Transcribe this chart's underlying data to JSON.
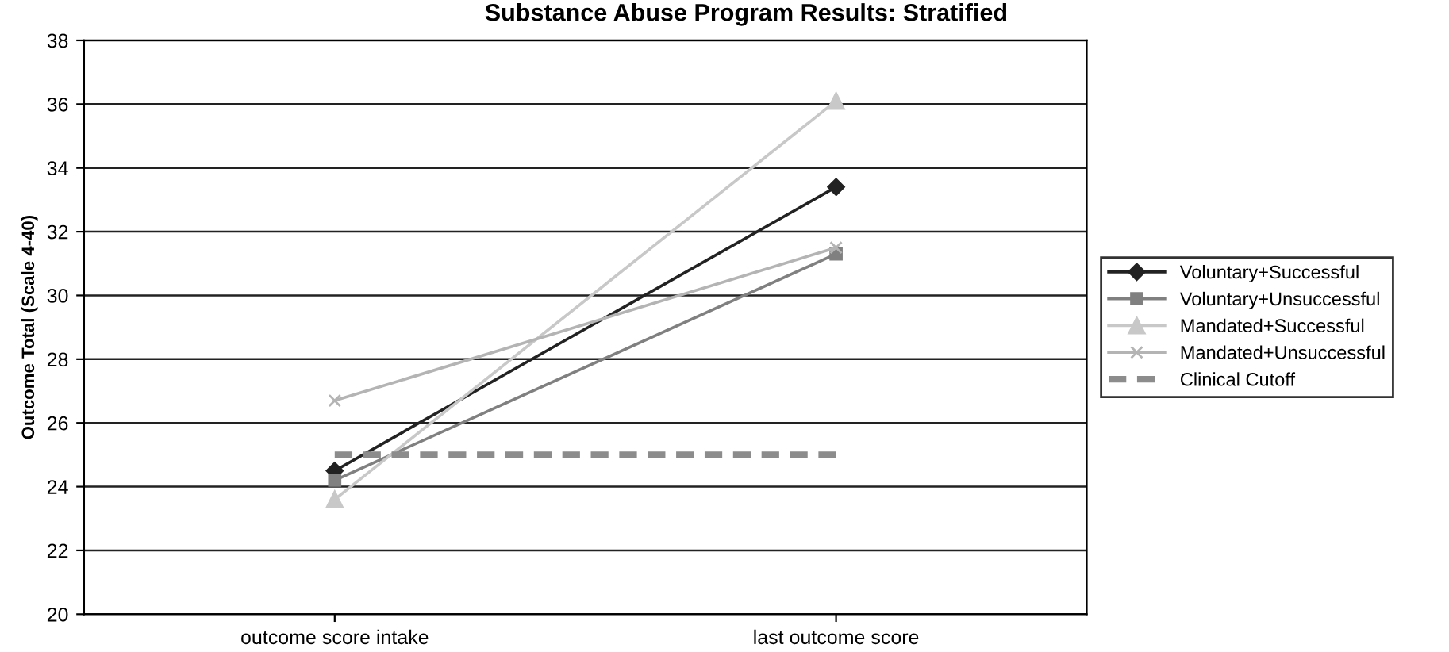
{
  "chart_data": {
    "type": "line",
    "title": "Substance Abuse Program Results: Stratified",
    "ylabel": "Outcome Total (Scale 4-40)",
    "categories": [
      "outcome score intake",
      "last outcome score"
    ],
    "series": [
      {
        "name": "Voluntary+Successful",
        "color": "#222222",
        "marker": "diamond",
        "values": [
          24.5,
          33.4
        ]
      },
      {
        "name": "Voluntary+Unsuccessful",
        "color": "#808080",
        "marker": "square",
        "values": [
          24.2,
          31.3
        ]
      },
      {
        "name": "Mandated+Successful",
        "color": "#c8c8c8",
        "marker": "triangle",
        "values": [
          23.6,
          36.1
        ]
      },
      {
        "name": "Mandated+Unsuccessful",
        "color": "#b4b4b4",
        "marker": "cross",
        "values": [
          26.7,
          31.5
        ]
      },
      {
        "name": "Clinical Cutoff",
        "color": "#8c8c8c",
        "marker": "none",
        "line_style": "dashed",
        "values": [
          25,
          25
        ]
      }
    ],
    "ylim": [
      20,
      38
    ],
    "yticks": [
      20,
      22,
      24,
      26,
      28,
      30,
      32,
      34,
      36,
      38
    ],
    "grid": "y",
    "legend": "right"
  }
}
